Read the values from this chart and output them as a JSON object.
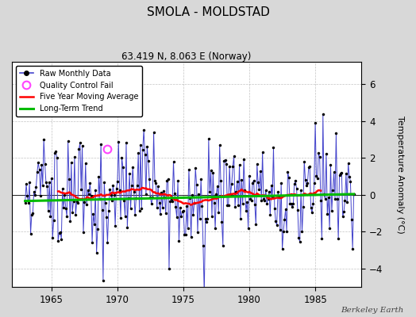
{
  "title": "SMOLA - MOLDSTAD",
  "subtitle": "63.419 N, 8.063 E (Norway)",
  "ylabel": "Temperature Anomaly (°C)",
  "watermark": "Berkeley Earth",
  "xlim": [
    1962.0,
    1988.5
  ],
  "ylim": [
    -5.0,
    7.2
  ],
  "yticks": [
    -4,
    -2,
    0,
    2,
    4,
    6
  ],
  "xticks": [
    1965,
    1970,
    1975,
    1980,
    1985
  ],
  "background_color": "#d8d8d8",
  "plot_bg_color": "#ffffff",
  "raw_line_color": "#4444cc",
  "raw_marker_color": "#000000",
  "qc_fail_color": "#ff44ff",
  "moving_avg_color": "#ff0000",
  "trend_color": "#00bb00",
  "seed": 15
}
